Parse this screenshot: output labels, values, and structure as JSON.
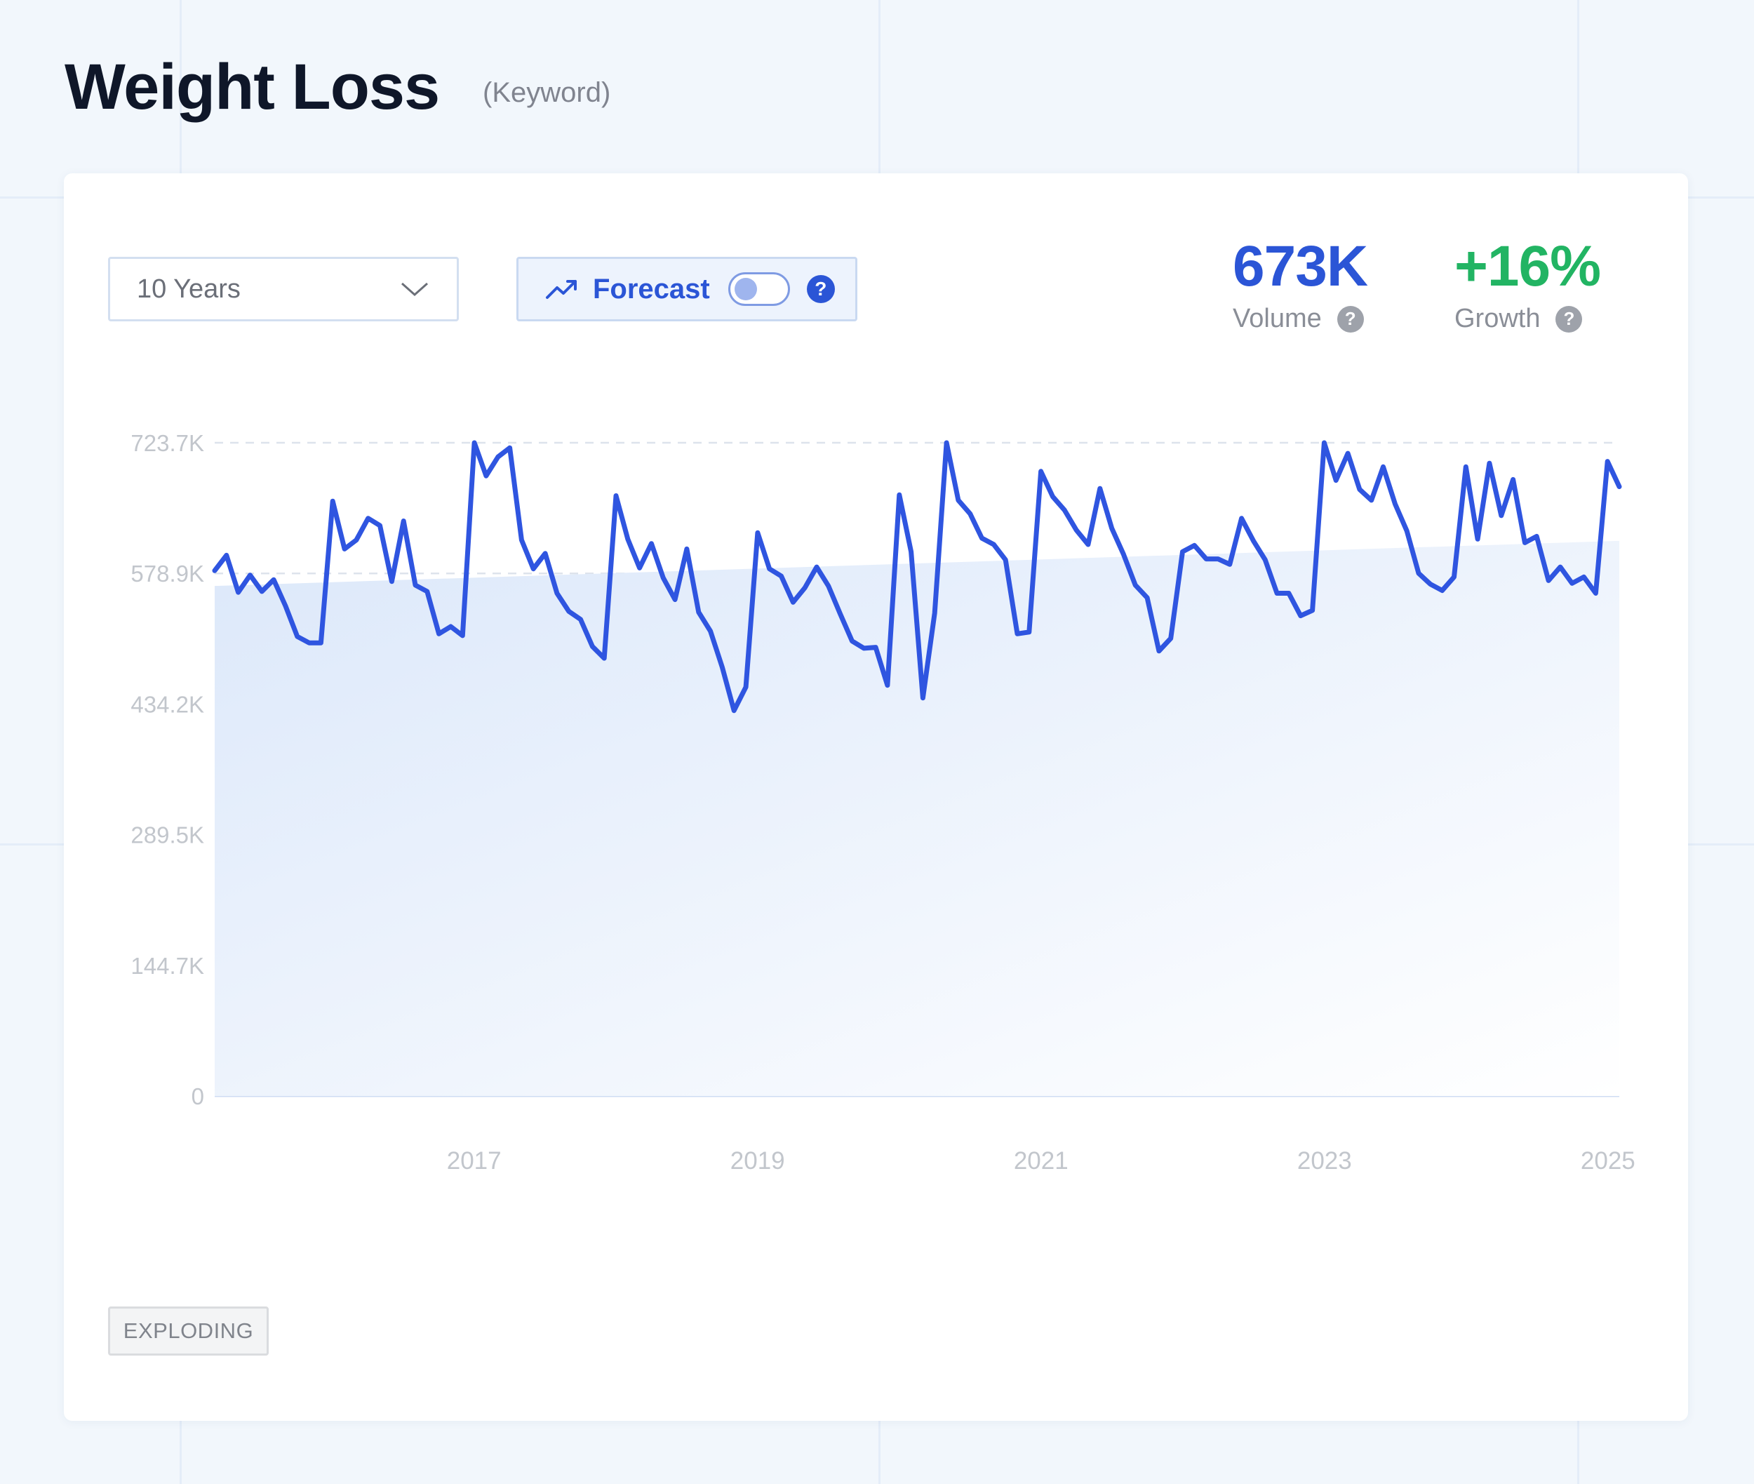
{
  "header": {
    "title": "Weight Loss",
    "subtitle": "(Keyword)"
  },
  "controls": {
    "range_label": "10 Years",
    "forecast_label": "Forecast",
    "forecast_enabled": false,
    "help_glyph": "?"
  },
  "stats": {
    "volume": {
      "value": "673K",
      "label": "Volume"
    },
    "growth": {
      "value": "+16%",
      "label": "Growth"
    }
  },
  "badge": "EXPLODING",
  "colors": {
    "accent": "#2b55d6",
    "growth": "#22b463",
    "line": "#2f55e0",
    "fill": "#dce8fa"
  },
  "icons": {
    "range_select": "chevron-down-icon",
    "forecast": "trend-up-icon",
    "help": "help-icon"
  },
  "chart_data": {
    "type": "area",
    "title": "",
    "xlabel": "",
    "ylabel": "",
    "x_ticks": [
      "2017",
      "2019",
      "2021",
      "2023",
      "2025"
    ],
    "y_ticks": [
      "0",
      "144.7K",
      "289.5K",
      "434.2K",
      "578.9K",
      "723.7K"
    ],
    "ylim": [
      0,
      723700
    ],
    "x_range": [
      2015.17,
      2025.08
    ],
    "grid": true,
    "series": [
      {
        "values": [
          582000,
          599000,
          558000,
          577000,
          559000,
          572000,
          543000,
          509000,
          502000,
          502000,
          659000,
          606000,
          616000,
          640000,
          632000,
          570000,
          637000,
          566000,
          559000,
          512000,
          520000,
          510000,
          723700,
          687000,
          708000,
          718000,
          616000,
          584000,
          601000,
          557000,
          537000,
          528000,
          498000,
          485000,
          665000,
          617000,
          585000,
          612000,
          574000,
          550000,
          606000,
          536000,
          515000,
          475000,
          427000,
          453000,
          624000,
          584000,
          576000,
          547000,
          563000,
          586000,
          565000,
          534000,
          504000,
          496000,
          497000,
          455000,
          666000,
          603000,
          441000,
          535000,
          723700,
          660000,
          645000,
          618000,
          611000,
          594000,
          512000,
          514000,
          692000,
          664000,
          649000,
          627000,
          611000,
          673000,
          629000,
          600000,
          566000,
          552000,
          493000,
          507000,
          603000,
          610000,
          595000,
          595000,
          589000,
          640000,
          615000,
          594000,
          557000,
          557000,
          532000,
          538000,
          723700,
          682000,
          712000,
          672000,
          660000,
          697000,
          656000,
          626000,
          579000,
          567000,
          560000,
          575000,
          697000,
          617000,
          701000,
          643000,
          683000,
          613000,
          620000,
          571000,
          586000,
          568000,
          575000,
          557000,
          703000,
          675000
        ],
        "trend": [
          565000,
          615000
        ]
      }
    ]
  }
}
